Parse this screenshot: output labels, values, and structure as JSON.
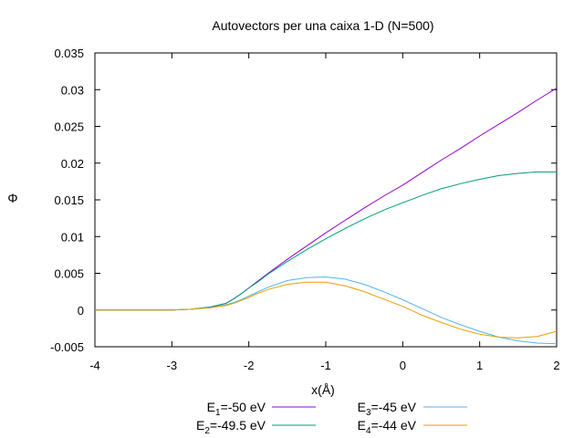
{
  "chart_data": {
    "type": "line",
    "title": "Autovectors per una caixa 1-D (N=500)",
    "xlabel": "x(Å)",
    "ylabel": "Φ",
    "xlim": [
      -4,
      2
    ],
    "ylim": [
      -0.005,
      0.035
    ],
    "xticks": [
      "-4",
      "-3",
      "-2",
      "-1",
      "0",
      "1",
      "2"
    ],
    "yticks": [
      "-0.005",
      "0",
      "0.005",
      "0.01",
      "0.015",
      "0.02",
      "0.025",
      "0.03",
      "0.035"
    ],
    "grid": false,
    "legend_position": "bottom",
    "series": [
      {
        "name": "E1=-50 eV",
        "label_base": "E",
        "label_sub": "1",
        "label_rest": "=-50 eV",
        "color": "#9400d3",
        "x": [
          -4,
          -3,
          -2.75,
          -2.5,
          -2.3,
          -2.2,
          -2.1,
          -2,
          -1.9,
          -1.75,
          -1.5,
          -1.25,
          -1,
          -0.75,
          -0.5,
          -0.25,
          0,
          0.25,
          0.5,
          0.75,
          1,
          1.25,
          1.5,
          1.75,
          2
        ],
        "y": [
          0,
          0,
          0.0001,
          0.0004,
          0.0009,
          0.0015,
          0.0022,
          0.003,
          0.0038,
          0.005,
          0.0069,
          0.0087,
          0.0105,
          0.0122,
          0.0139,
          0.0155,
          0.017,
          0.0187,
          0.0204,
          0.022,
          0.0237,
          0.0253,
          0.0269,
          0.0286,
          0.0302
        ]
      },
      {
        "name": "E2=-49.5 eV",
        "label_base": "E",
        "label_sub": "2",
        "label_rest": "=-49.5 eV",
        "color": "#009e73",
        "x": [
          -4,
          -3,
          -2.75,
          -2.5,
          -2.3,
          -2.2,
          -2.1,
          -2,
          -1.9,
          -1.75,
          -1.5,
          -1.25,
          -1,
          -0.75,
          -0.5,
          -0.25,
          0,
          0.25,
          0.5,
          0.75,
          1,
          1.25,
          1.5,
          1.75,
          2
        ],
        "y": [
          0,
          0,
          0.0001,
          0.0004,
          0.0009,
          0.0015,
          0.0022,
          0.003,
          0.0037,
          0.0049,
          0.0066,
          0.0082,
          0.0097,
          0.0111,
          0.0124,
          0.0136,
          0.0146,
          0.0156,
          0.0165,
          0.0172,
          0.0178,
          0.0183,
          0.0186,
          0.0188,
          0.0188
        ]
      },
      {
        "name": "E3=-45 eV",
        "label_base": "E",
        "label_sub": "3",
        "label_rest": "=-45 eV",
        "color": "#56b4e9",
        "x": [
          -4,
          -3,
          -2.75,
          -2.5,
          -2.3,
          -2.2,
          -2.1,
          -2,
          -1.9,
          -1.75,
          -1.5,
          -1.25,
          -1,
          -0.75,
          -0.5,
          -0.25,
          0,
          0.25,
          0.5,
          0.75,
          1,
          1.25,
          1.5,
          1.75,
          2
        ],
        "y": [
          0,
          0,
          0.0001,
          0.0003,
          0.0007,
          0.001,
          0.0014,
          0.0019,
          0.0024,
          0.0031,
          0.004,
          0.0044,
          0.0045,
          0.0042,
          0.0035,
          0.0025,
          0.0014,
          0.0002,
          -0.001,
          -0.002,
          -0.0029,
          -0.0037,
          -0.0042,
          -0.0045,
          -0.0046
        ]
      },
      {
        "name": "E4=-44 eV",
        "label_base": "E",
        "label_sub": "4",
        "label_rest": "=-44 eV",
        "color": "#e69f00",
        "x": [
          -4,
          -3,
          -2.75,
          -2.5,
          -2.3,
          -2.2,
          -2.1,
          -2,
          -1.9,
          -1.75,
          -1.5,
          -1.25,
          -1,
          -0.75,
          -0.5,
          -0.25,
          0,
          0.25,
          0.5,
          0.75,
          1,
          1.25,
          1.5,
          1.75,
          2
        ],
        "y": [
          0,
          0,
          0.0001,
          0.0003,
          0.0006,
          0.0009,
          0.0013,
          0.0017,
          0.0022,
          0.0028,
          0.0035,
          0.0038,
          0.0038,
          0.0033,
          0.0025,
          0.0015,
          0.0005,
          -0.0007,
          -0.0017,
          -0.0026,
          -0.0033,
          -0.0037,
          -0.0038,
          -0.0036,
          -0.0029
        ]
      }
    ]
  }
}
